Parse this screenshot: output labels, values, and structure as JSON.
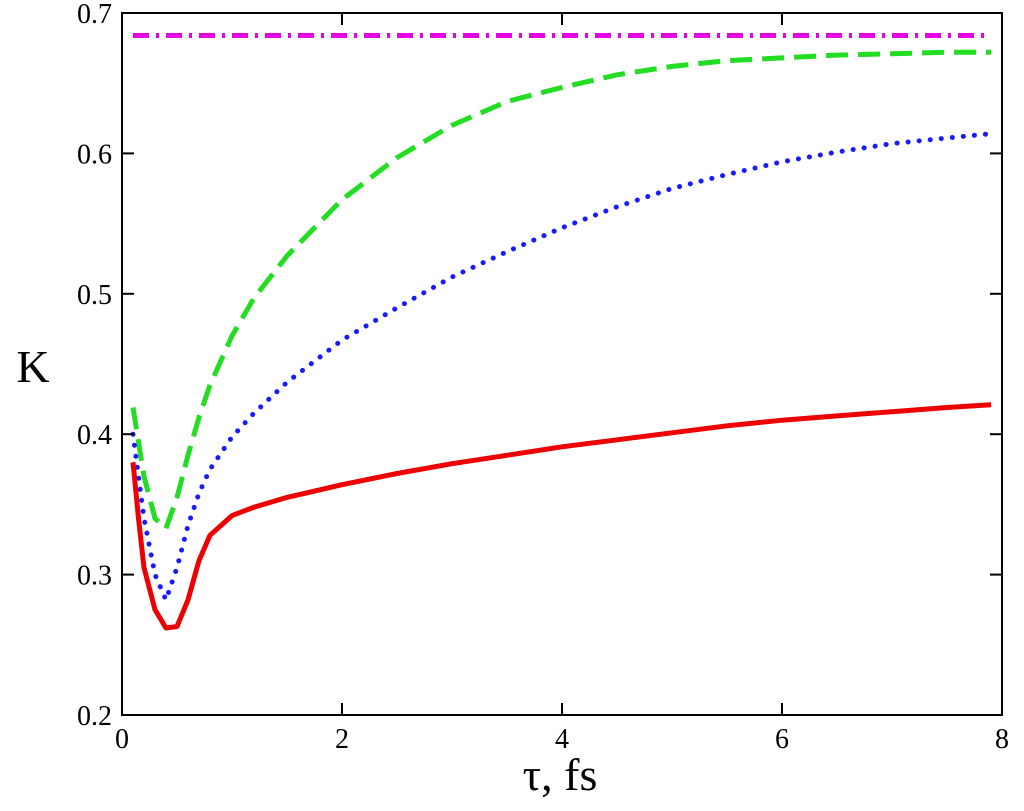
{
  "chart_data": {
    "type": "line",
    "title": "",
    "xlabel": "τ, fs",
    "ylabel": "K",
    "xlim": [
      0,
      8
    ],
    "ylim": [
      0.2,
      0.7
    ],
    "x_ticks": [
      "0",
      "2",
      "4",
      "6",
      "8"
    ],
    "y_ticks": [
      "0.2",
      "0.3",
      "0.4",
      "0.5",
      "0.6",
      "0.7"
    ],
    "grid": false,
    "legend": "none",
    "series": [
      {
        "style": "dash-dot",
        "color": "#e600e6",
        "x": [
          0.1,
          7.9
        ],
        "y": [
          0.684,
          0.684
        ]
      },
      {
        "style": "dashed",
        "color": "#22dd22",
        "x": [
          0.1,
          0.2,
          0.3,
          0.4,
          0.5,
          0.6,
          0.7,
          0.8,
          1.0,
          1.2,
          1.5,
          2.0,
          2.5,
          3.0,
          3.5,
          4.0,
          4.5,
          5.0,
          5.5,
          6.0,
          6.5,
          7.0,
          7.5,
          7.9
        ],
        "y": [
          0.419,
          0.37,
          0.34,
          0.333,
          0.355,
          0.385,
          0.412,
          0.435,
          0.47,
          0.497,
          0.527,
          0.567,
          0.597,
          0.62,
          0.637,
          0.647,
          0.656,
          0.662,
          0.666,
          0.668,
          0.67,
          0.671,
          0.672,
          0.672
        ]
      },
      {
        "style": "dotted",
        "color": "#1a1aff",
        "x": [
          0.1,
          0.2,
          0.3,
          0.4,
          0.5,
          0.6,
          0.7,
          0.8,
          1.0,
          1.2,
          1.5,
          2.0,
          2.5,
          3.0,
          3.5,
          4.0,
          4.5,
          5.0,
          5.5,
          6.0,
          6.5,
          7.0,
          7.5,
          7.9
        ],
        "y": [
          0.4,
          0.34,
          0.3,
          0.282,
          0.305,
          0.335,
          0.358,
          0.375,
          0.398,
          0.415,
          0.437,
          0.467,
          0.49,
          0.512,
          0.53,
          0.547,
          0.562,
          0.575,
          0.585,
          0.594,
          0.601,
          0.607,
          0.611,
          0.614
        ]
      },
      {
        "style": "solid",
        "color": "#ee0000",
        "x": [
          0.1,
          0.15,
          0.2,
          0.3,
          0.4,
          0.5,
          0.6,
          0.7,
          0.8,
          1.0,
          1.2,
          1.5,
          2.0,
          2.5,
          3.0,
          3.5,
          4.0,
          4.5,
          5.0,
          5.5,
          6.0,
          6.5,
          7.0,
          7.5,
          7.9
        ],
        "y": [
          0.38,
          0.34,
          0.305,
          0.275,
          0.262,
          0.263,
          0.282,
          0.31,
          0.328,
          0.342,
          0.348,
          0.355,
          0.364,
          0.372,
          0.379,
          0.385,
          0.391,
          0.396,
          0.401,
          0.406,
          0.41,
          0.413,
          0.416,
          0.419,
          0.421
        ]
      }
    ]
  }
}
